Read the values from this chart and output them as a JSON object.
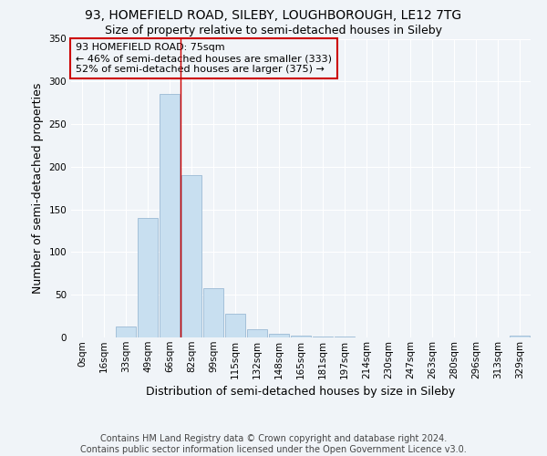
{
  "title1": "93, HOMEFIELD ROAD, SILEBY, LOUGHBOROUGH, LE12 7TG",
  "title2": "Size of property relative to semi-detached houses in Sileby",
  "xlabel": "Distribution of semi-detached houses by size in Sileby",
  "ylabel": "Number of semi-detached properties",
  "annotation_line1": "93 HOMEFIELD ROAD: 75sqm",
  "annotation_line2": "← 46% of semi-detached houses are smaller (333)",
  "annotation_line3": "52% of semi-detached houses are larger (375) →",
  "footnote1": "Contains HM Land Registry data © Crown copyright and database right 2024.",
  "footnote2": "Contains public sector information licensed under the Open Government Licence v3.0.",
  "bin_labels": [
    "0sqm",
    "16sqm",
    "33sqm",
    "49sqm",
    "66sqm",
    "82sqm",
    "99sqm",
    "115sqm",
    "132sqm",
    "148sqm",
    "165sqm",
    "181sqm",
    "197sqm",
    "214sqm",
    "230sqm",
    "247sqm",
    "263sqm",
    "280sqm",
    "296sqm",
    "313sqm",
    "329sqm"
  ],
  "bar_values": [
    0,
    0,
    13,
    140,
    285,
    190,
    58,
    28,
    10,
    4,
    2,
    1,
    1,
    0,
    0,
    0,
    0,
    0,
    0,
    0,
    2
  ],
  "bar_color": "#c8dff0",
  "bar_edge_color": "#9bbad4",
  "property_line_x": 4.5,
  "property_line_color": "#cc0000",
  "annotation_box_color": "#cc0000",
  "ylim": [
    0,
    350
  ],
  "yticks": [
    0,
    50,
    100,
    150,
    200,
    250,
    300,
    350
  ],
  "background_color": "#f0f4f8",
  "grid_color": "#ffffff",
  "title_fontsize": 10,
  "subtitle_fontsize": 9,
  "axis_label_fontsize": 9,
  "tick_fontsize": 7.5,
  "annotation_fontsize": 8,
  "footnote_fontsize": 7
}
